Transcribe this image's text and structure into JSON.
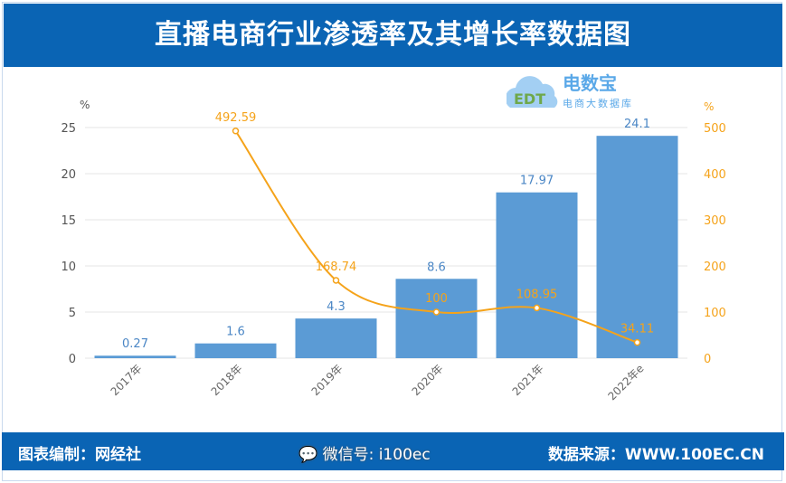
{
  "header": {
    "title": "直播电商行业渗透率及其增长率数据图"
  },
  "footer": {
    "credit": "图表编制：网经社",
    "source": "数据来源：WWW.100EC.CN",
    "wechat": "微信号: i100ec"
  },
  "logo": {
    "text": "电数宝",
    "subtitle": "电商大数据库",
    "mark": "EDT"
  },
  "chart_data": {
    "type": "bar+line",
    "categories": [
      "2017年",
      "2018年",
      "2019年",
      "2020年",
      "2021年",
      "2022年e"
    ],
    "series": [
      {
        "type": "bar",
        "axis": "left",
        "color": "#5b9bd5",
        "values": [
          0.27,
          1.6,
          4.3,
          8.6,
          17.97,
          24.1
        ],
        "labels": [
          "0.27",
          "1.6",
          "4.3",
          "8.6",
          "17.97",
          "24.1"
        ]
      },
      {
        "type": "line",
        "axis": "right",
        "color": "#f5a31a",
        "values": [
          null,
          492.59,
          168.74,
          100,
          108.95,
          34.11
        ],
        "labels": [
          "",
          "492.59",
          "168.74",
          "100",
          "108.95",
          "34.11"
        ]
      }
    ],
    "left_axis": {
      "unit": "%",
      "ylim": [
        0,
        25
      ],
      "ticks": [
        0,
        5,
        10,
        15,
        20,
        25
      ]
    },
    "right_axis": {
      "unit": "%",
      "ylim": [
        0,
        500
      ],
      "ticks": [
        0,
        100,
        200,
        300,
        400,
        500
      ]
    },
    "grid": true
  }
}
